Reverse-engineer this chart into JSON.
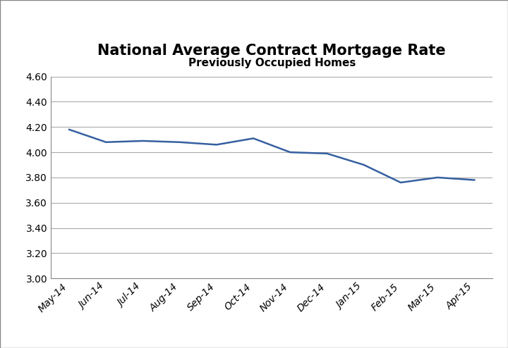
{
  "title": "National Average Contract Mortgage Rate",
  "subtitle": "Previously Occupied Homes",
  "x_labels": [
    "May-14",
    "Jun-14",
    "Jul-14",
    "Aug-14",
    "Sep-14",
    "Oct-14",
    "Nov-14",
    "Dec-14",
    "Jan-15",
    "Feb-15",
    "Mar-15",
    "Apr-15"
  ],
  "y_values": [
    4.18,
    4.08,
    4.09,
    4.08,
    4.06,
    4.11,
    4.0,
    3.99,
    3.9,
    3.76,
    3.8,
    3.78
  ],
  "ylim": [
    3.0,
    4.6
  ],
  "yticks": [
    3.0,
    3.2,
    3.4,
    3.6,
    3.8,
    4.0,
    4.2,
    4.4,
    4.6
  ],
  "line_color": "#3560A0",
  "line_width": 1.8,
  "background_color": "#ffffff",
  "grid_color": "#aaaaaa",
  "title_fontsize": 15,
  "subtitle_fontsize": 11,
  "tick_fontsize": 10,
  "title_font_weight": "bold",
  "subtitle_font_weight": "bold",
  "border_color": "#888888"
}
